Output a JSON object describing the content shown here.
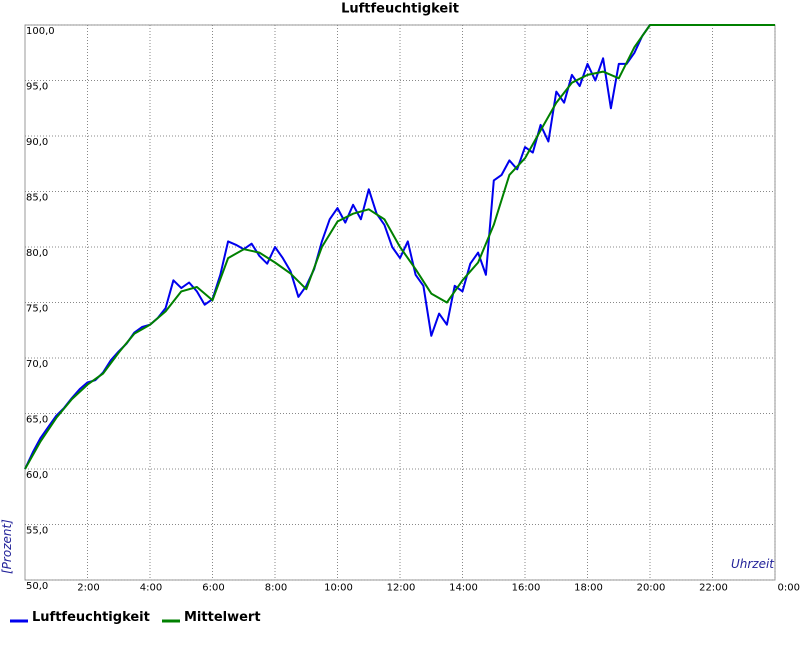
{
  "chart_data": {
    "type": "line",
    "title": "Luftfeuchtigkeit",
    "xlabel": "Uhrzeit",
    "ylabel": "[Prozent]",
    "xlim": [
      0,
      24
    ],
    "xticks": [
      {
        "value": 2,
        "label": "2:00"
      },
      {
        "value": 4,
        "label": "4:00"
      },
      {
        "value": 6,
        "label": "6:00"
      },
      {
        "value": 8,
        "label": "8:00"
      },
      {
        "value": 10,
        "label": "10:00"
      },
      {
        "value": 12,
        "label": "12:00"
      },
      {
        "value": 14,
        "label": "14:00"
      },
      {
        "value": 16,
        "label": "16:00"
      },
      {
        "value": 18,
        "label": "18:00"
      },
      {
        "value": 20,
        "label": "20:00"
      },
      {
        "value": 22,
        "label": "22:00"
      },
      {
        "value": 24,
        "label": "0:00"
      }
    ],
    "ylim": [
      50,
      100
    ],
    "yticks": [
      {
        "value": 50,
        "label": "50,0"
      },
      {
        "value": 55,
        "label": "55,0"
      },
      {
        "value": 60,
        "label": "60,0"
      },
      {
        "value": 65,
        "label": "65,0"
      },
      {
        "value": 70,
        "label": "70,0"
      },
      {
        "value": 75,
        "label": "75,0"
      },
      {
        "value": 80,
        "label": "80,0"
      },
      {
        "value": 85,
        "label": "85,0"
      },
      {
        "value": 90,
        "label": "90,0"
      },
      {
        "value": 95,
        "label": "95,0"
      },
      {
        "value": 100,
        "label": "100,0"
      }
    ],
    "grid": true,
    "series": [
      {
        "name": "Luftfeuchtigkeit",
        "color": "#0000ee",
        "x": [
          0,
          0.25,
          0.5,
          0.75,
          1,
          1.25,
          1.5,
          1.75,
          2,
          2.25,
          2.5,
          2.75,
          3,
          3.25,
          3.5,
          3.75,
          4,
          4.25,
          4.5,
          4.75,
          5,
          5.25,
          5.5,
          5.75,
          6,
          6.25,
          6.5,
          6.75,
          7,
          7.25,
          7.5,
          7.75,
          8,
          8.25,
          8.5,
          8.75,
          9,
          9.25,
          9.5,
          9.75,
          10,
          10.25,
          10.5,
          10.75,
          11,
          11.25,
          11.5,
          11.75,
          12,
          12.25,
          12.5,
          12.75,
          13,
          13.25,
          13.5,
          13.75,
          14,
          14.25,
          14.5,
          14.75,
          15,
          15.25,
          15.5,
          15.75,
          16,
          16.25,
          16.5,
          16.75,
          17,
          17.25,
          17.5,
          17.75,
          18,
          18.25,
          18.5,
          18.75,
          19,
          19.25,
          19.5,
          19.75,
          20,
          24
        ],
        "values": [
          60,
          61.5,
          62.8,
          63.8,
          64.8,
          65.5,
          66.4,
          67.2,
          67.8,
          68.0,
          68.7,
          69.8,
          70.6,
          71.3,
          72.3,
          72.8,
          73.0,
          73.6,
          74.5,
          77.0,
          76.3,
          76.8,
          76.0,
          74.8,
          75.3,
          77.5,
          80.5,
          80.2,
          79.8,
          80.3,
          79.2,
          78.5,
          80.0,
          79.0,
          77.8,
          75.5,
          76.5,
          78.0,
          80.5,
          82.5,
          83.5,
          82.2,
          83.8,
          82.5,
          85.2,
          83.0,
          82.0,
          80.0,
          79.0,
          80.5,
          77.5,
          76.5,
          72.0,
          74.0,
          73.0,
          76.5,
          76.0,
          78.5,
          79.5,
          77.5,
          86.0,
          86.5,
          87.8,
          87.0,
          89.0,
          88.5,
          91.0,
          89.5,
          94.0,
          93.0,
          95.5,
          94.5,
          96.5,
          95.0,
          97.0,
          92.5,
          96.5,
          96.5,
          97.5,
          99.0,
          100,
          100
        ]
      },
      {
        "name": "Mittelwert",
        "color": "#008000",
        "x": [
          0,
          0.5,
          1,
          1.5,
          2,
          2.5,
          3,
          3.5,
          4,
          4.5,
          5,
          5.5,
          6,
          6.5,
          7,
          7.5,
          8,
          8.5,
          9,
          9.5,
          10,
          10.5,
          11,
          11.5,
          12,
          12.5,
          13,
          13.5,
          14,
          14.5,
          15,
          15.5,
          16,
          16.5,
          17,
          17.5,
          18,
          18.5,
          19,
          19.5,
          20,
          20.5,
          21,
          21.5,
          22,
          22.5,
          23,
          23.5,
          24
        ],
        "values": [
          60,
          62.5,
          64.6,
          66.3,
          67.6,
          68.6,
          70.5,
          72.2,
          73.0,
          74.2,
          76.0,
          76.4,
          75.2,
          79.0,
          79.8,
          79.5,
          78.6,
          77.6,
          76.2,
          80.0,
          82.3,
          83.0,
          83.4,
          82.5,
          80.0,
          78.0,
          75.8,
          75.0,
          77.0,
          78.6,
          82.0,
          86.5,
          88.0,
          90.5,
          93.0,
          94.8,
          95.5,
          95.8,
          95.2,
          98.0,
          100,
          100,
          100,
          100,
          100,
          100,
          100,
          100,
          100
        ]
      }
    ]
  }
}
